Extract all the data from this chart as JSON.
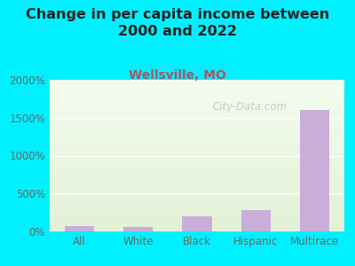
{
  "title": "Change in per capita income between\n2000 and 2022",
  "subtitle": "Wellsville, MO",
  "categories": [
    "All",
    "White",
    "Black",
    "Hispanic",
    "Multirace"
  ],
  "values": [
    75,
    60,
    195,
    280,
    1600
  ],
  "bar_color": "#c9aeda",
  "background_color": "#00f0ff",
  "plot_bg_color": "#f0f8e8",
  "title_fontsize": 11.5,
  "subtitle_fontsize": 10,
  "subtitle_color": "#aa5566",
  "title_color": "#222222",
  "tick_label_color": "#666666",
  "axis_label_color": "#666666",
  "ylim": [
    0,
    2000
  ],
  "yticks": [
    0,
    500,
    1000,
    1500,
    2000
  ],
  "watermark": "City-Data.com"
}
